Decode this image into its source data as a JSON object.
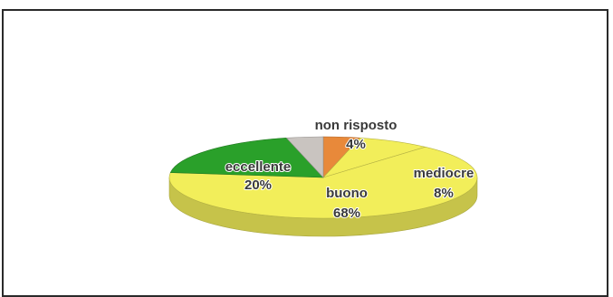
{
  "chart_data": {
    "type": "pie",
    "style": "3d",
    "slices": [
      {
        "category": "non risposto",
        "percent_label": "4%",
        "value": 4,
        "color": "#e8893a"
      },
      {
        "category": "mediocre",
        "percent_label": "8%",
        "value": 8,
        "color": "#f2ee5a"
      },
      {
        "category": "buono",
        "percent_label": "68%",
        "value": 68,
        "color": "#f2ee5a"
      },
      {
        "category": "eccellente",
        "percent_label": "20%",
        "value": 20,
        "color": "#2aa02a"
      },
      {
        "category": "",
        "percent_label": "",
        "value": 4,
        "color": "#c9c4c0"
      }
    ],
    "legend": "none"
  }
}
